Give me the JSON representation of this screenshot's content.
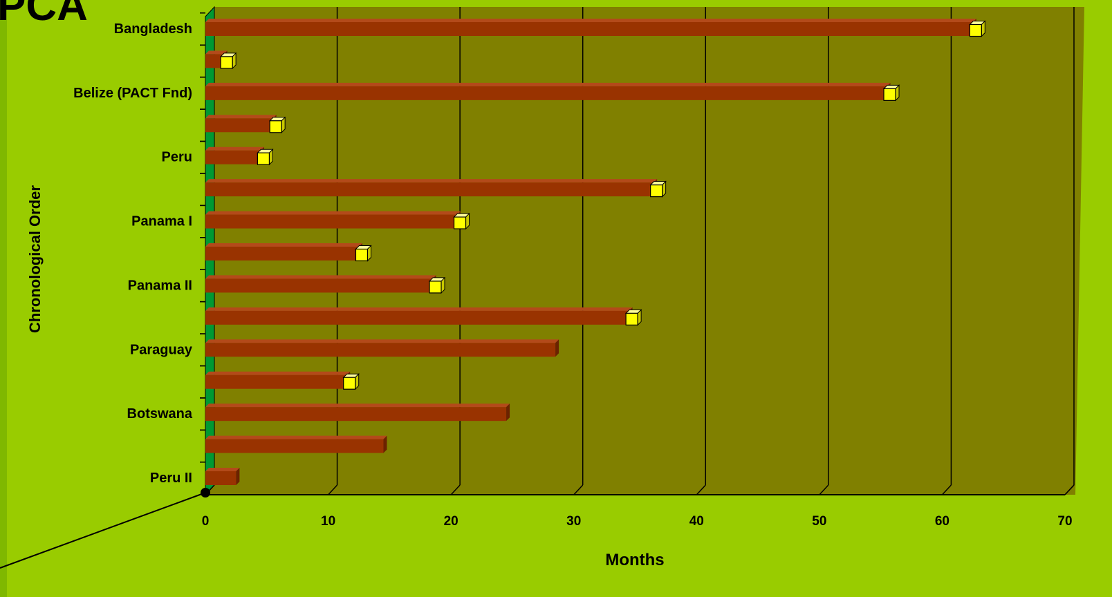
{
  "slide": {
    "title_fragment": "PCA"
  },
  "colors": {
    "background": "#99cc00",
    "plot_wall": "#808000",
    "side_wall": "#009933",
    "bar_front": "#993300",
    "bar_top": "#b34a1a",
    "bar_side": "#6b2200",
    "marker": "#ffff00",
    "gridline": "#000000"
  },
  "chart_data": {
    "type": "bar",
    "orientation": "horizontal",
    "style": "3d",
    "title": "",
    "xlabel": "Months",
    "ylabel": "Chronological Order",
    "xlim": [
      0,
      70
    ],
    "x_ticks": [
      "0",
      "10",
      "20",
      "30",
      "40",
      "50",
      "60",
      "70"
    ],
    "grid": true,
    "legend": "none",
    "categories": [
      "Bangladesh",
      "",
      "Belize (PACT Fnd)",
      "",
      "Peru",
      "",
      "Panama I",
      "",
      "Panama II",
      "",
      "Paraguay",
      "",
      "Botswana",
      "",
      "Peru II"
    ],
    "series": [
      {
        "values": [
          62.5,
          1.5,
          55.5,
          5.5,
          4.5,
          36.5,
          20.5,
          12.5,
          18.5,
          34.5,
          28.5,
          11.5,
          24.5,
          14.5,
          2.5
        ]
      },
      {
        "marker": "square",
        "values": [
          62.5,
          1.5,
          55.5,
          5.5,
          4.5,
          36.5,
          20.5,
          12.5,
          18.5,
          34.5,
          null,
          11.5,
          null,
          null,
          null
        ]
      }
    ]
  }
}
